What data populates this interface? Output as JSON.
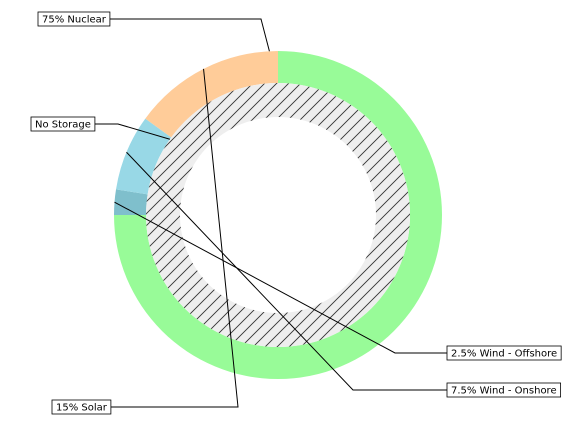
{
  "chart_data": {
    "type": "pie",
    "variant": "nested-donut",
    "outer_ring": {
      "series": [
        {
          "label": "75% Nuclear",
          "value": 75,
          "color": "#98fb98"
        },
        {
          "label": "2.5% Wind - Offshore",
          "value": 2.5,
          "color": "#7fbfcc"
        },
        {
          "label": "7.5% Wind - Onshore",
          "value": 7.5,
          "color": "#98d8e6"
        },
        {
          "label": "15% Solar",
          "value": 15,
          "color": "#ffcc99"
        }
      ],
      "start_angle_deg": 90,
      "direction": "clockwise"
    },
    "inner_ring": {
      "series": [
        {
          "label": "No Storage",
          "value": 100,
          "color": "#eeeeee",
          "hatch": "///"
        }
      ]
    },
    "title": "",
    "legend": "none"
  }
}
